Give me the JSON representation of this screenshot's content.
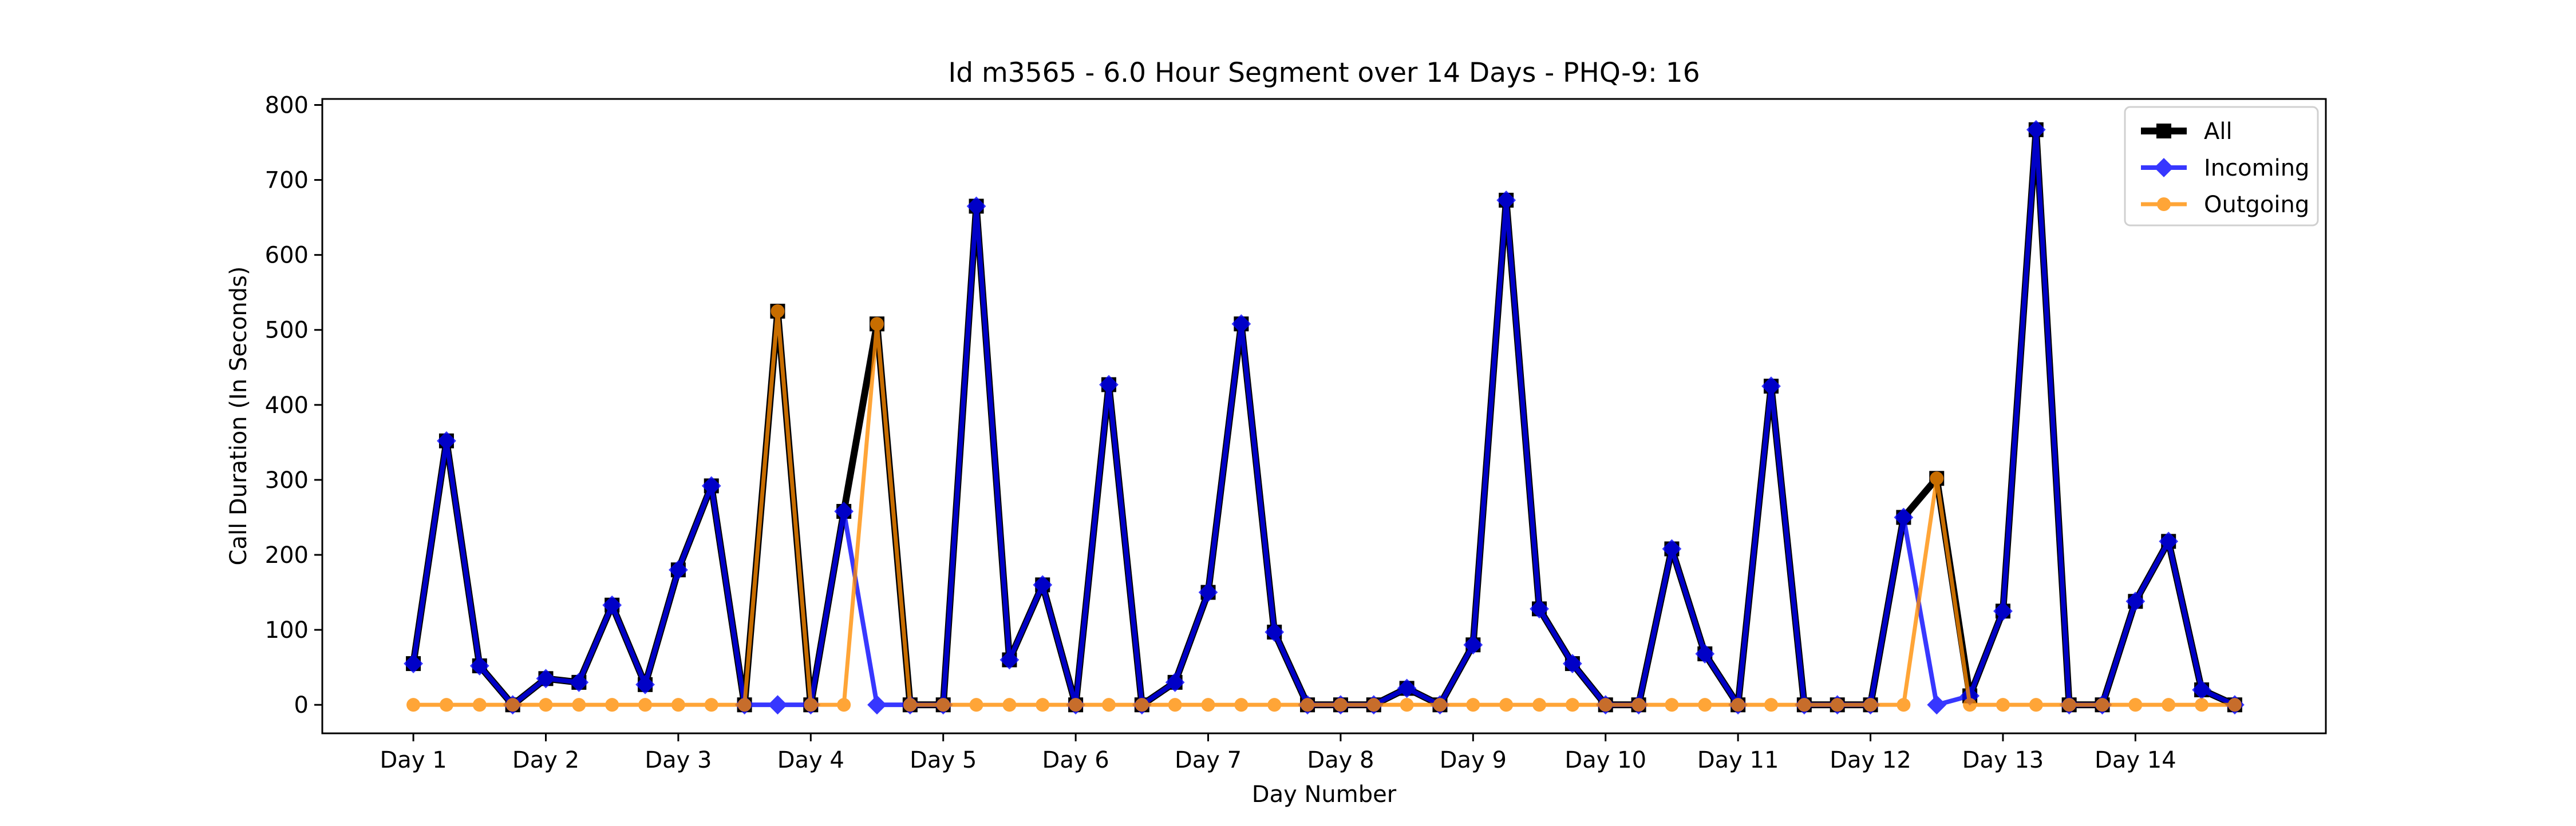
{
  "chart_data": {
    "type": "line",
    "title": "Id m3565 - 6.0 Hour Segment over 14 Days - PHQ-9: 16",
    "xlabel": "Day Number",
    "ylabel": "Call Duration (In Seconds)",
    "ylim": [
      -38,
      808
    ],
    "yticks": [
      0,
      100,
      200,
      300,
      400,
      500,
      600,
      700,
      800
    ],
    "xticks": [
      {
        "pos": 0,
        "label": "Day 1"
      },
      {
        "pos": 4,
        "label": "Day 2"
      },
      {
        "pos": 8,
        "label": "Day 3"
      },
      {
        "pos": 12,
        "label": "Day 4"
      },
      {
        "pos": 16,
        "label": "Day 5"
      },
      {
        "pos": 20,
        "label": "Day 6"
      },
      {
        "pos": 24,
        "label": "Day 7"
      },
      {
        "pos": 28,
        "label": "Day 8"
      },
      {
        "pos": 32,
        "label": "Day 9"
      },
      {
        "pos": 36,
        "label": "Day 10"
      },
      {
        "pos": 40,
        "label": "Day 11"
      },
      {
        "pos": 44,
        "label": "Day 12"
      },
      {
        "pos": 48,
        "label": "Day 13"
      },
      {
        "pos": 52,
        "label": "Day 14"
      }
    ],
    "xlim": [
      -2.75,
      57.75
    ],
    "legend_position": "top-right",
    "grid": false,
    "series": [
      {
        "name": "All",
        "color": "#000000",
        "marker": "square",
        "values": [
          55,
          352,
          52,
          0,
          35,
          30,
          133,
          27,
          180,
          292,
          0,
          525,
          0,
          258,
          508,
          0,
          0,
          665,
          60,
          160,
          0,
          427,
          0,
          30,
          150,
          508,
          97,
          0,
          0,
          0,
          22,
          0,
          80,
          673,
          128,
          55,
          0,
          0,
          208,
          68,
          0,
          425,
          0,
          0,
          0,
          250,
          302,
          12,
          125,
          767,
          0,
          0,
          138,
          218,
          20,
          0
        ]
      },
      {
        "name": "Incoming",
        "color": "#0000ff",
        "marker": "diamond",
        "values": [
          55,
          352,
          52,
          0,
          35,
          30,
          133,
          27,
          180,
          292,
          0,
          0,
          0,
          258,
          0,
          0,
          0,
          665,
          60,
          160,
          0,
          427,
          0,
          30,
          150,
          508,
          97,
          0,
          0,
          0,
          22,
          0,
          80,
          673,
          128,
          55,
          0,
          0,
          208,
          68,
          0,
          425,
          0,
          0,
          0,
          250,
          0,
          12,
          125,
          767,
          0,
          0,
          138,
          218,
          20,
          0
        ]
      },
      {
        "name": "Outgoing",
        "color": "#ff8c00",
        "marker": "circle",
        "values": [
          0,
          0,
          0,
          0,
          0,
          0,
          0,
          0,
          0,
          0,
          0,
          525,
          0,
          0,
          508,
          0,
          0,
          0,
          0,
          0,
          0,
          0,
          0,
          0,
          0,
          0,
          0,
          0,
          0,
          0,
          0,
          0,
          0,
          0,
          0,
          0,
          0,
          0,
          0,
          0,
          0,
          0,
          0,
          0,
          0,
          0,
          302,
          0,
          0,
          0,
          0,
          0,
          0,
          0,
          0,
          0
        ]
      }
    ]
  }
}
